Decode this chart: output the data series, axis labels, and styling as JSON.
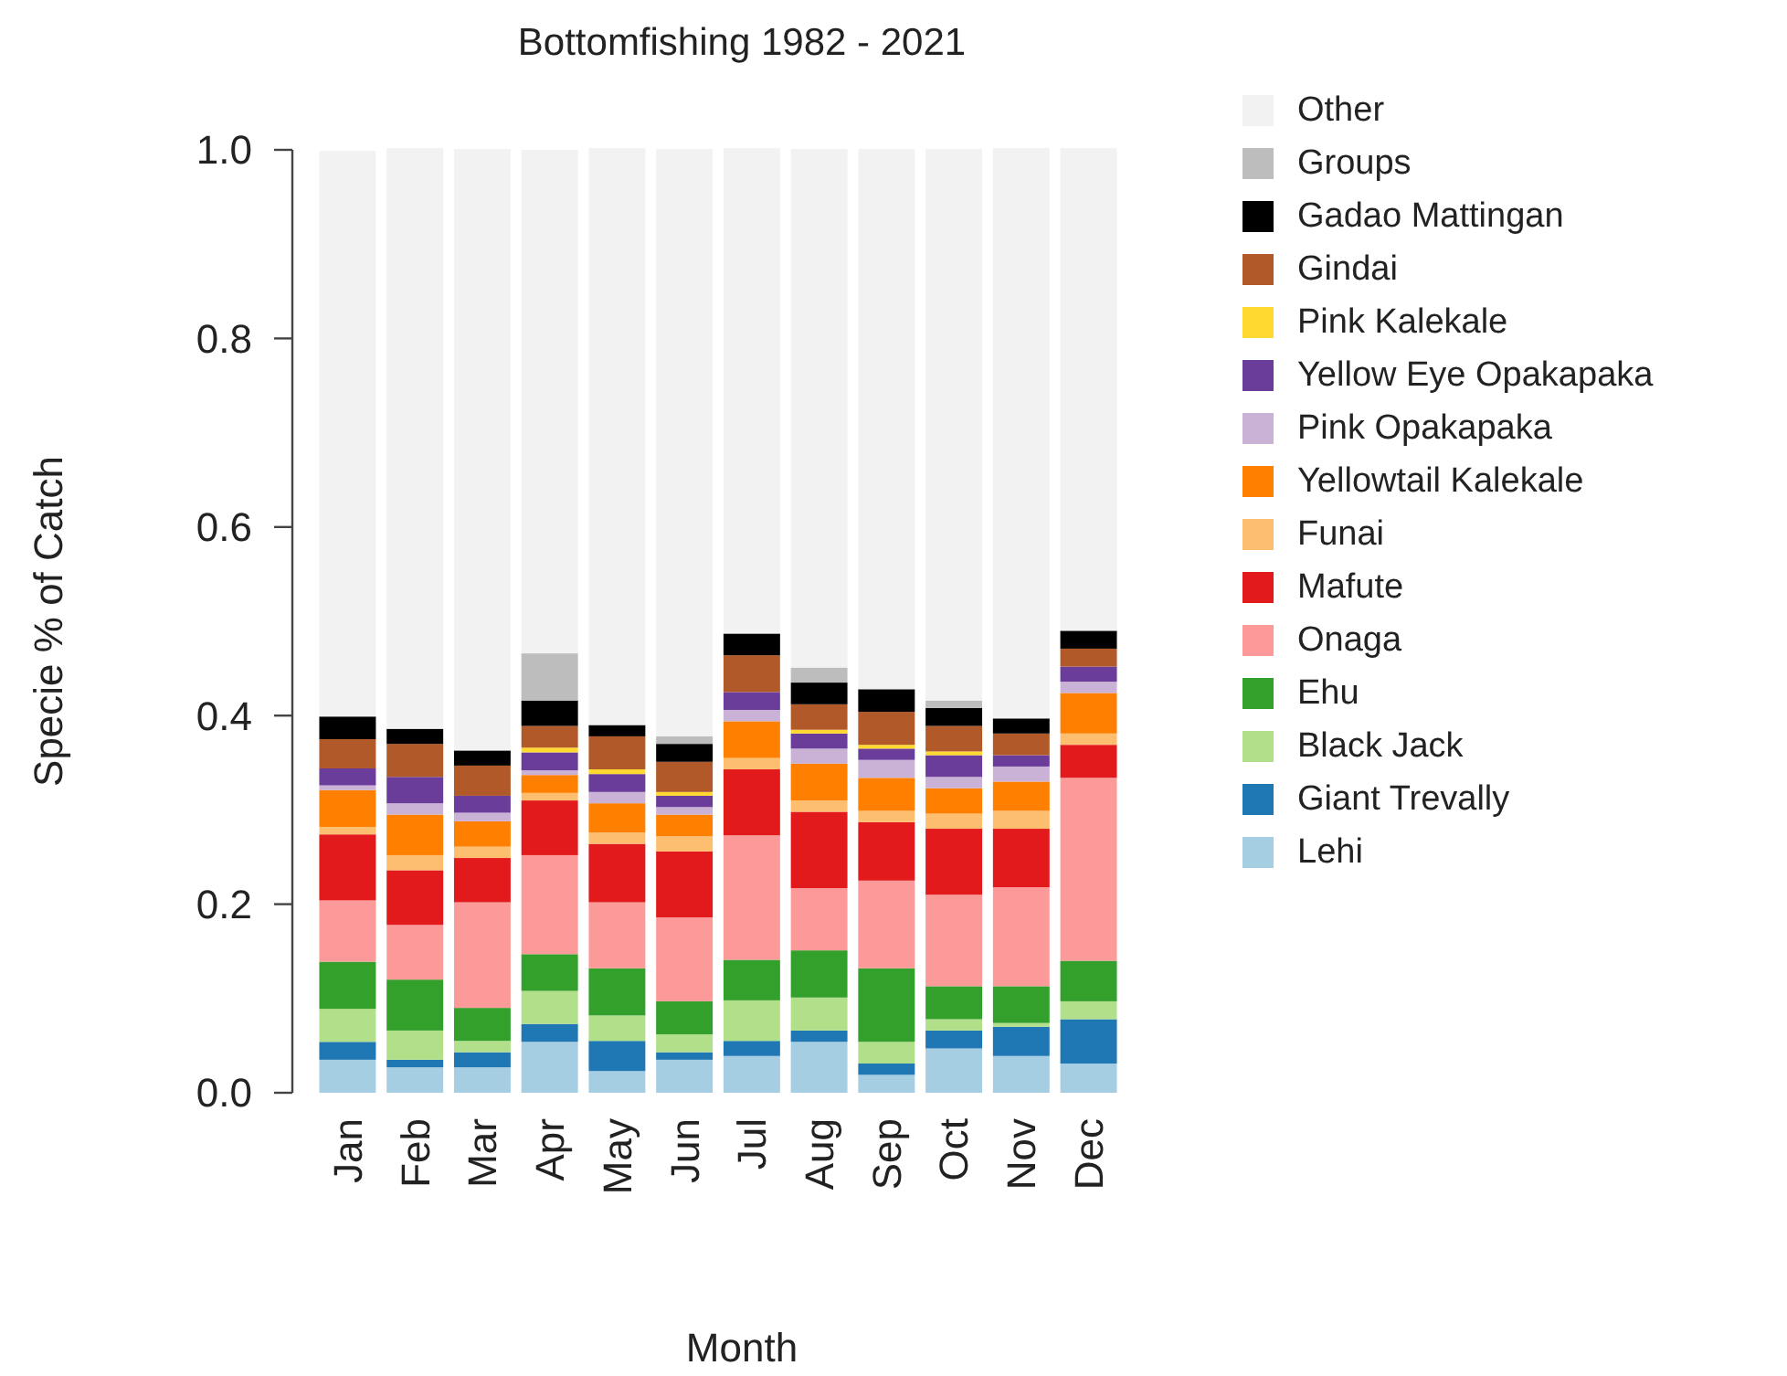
{
  "chart_data": {
    "type": "bar",
    "stacked": true,
    "title": "Bottomfishing 1982 - 2021",
    "xlabel": "Month",
    "ylabel": "Specie % of Catch",
    "categories": [
      "Jan",
      "Feb",
      "Mar",
      "Apr",
      "May",
      "Jun",
      "Jul",
      "Aug",
      "Sep",
      "Oct",
      "Nov",
      "Dec"
    ],
    "ylim": [
      0,
      1
    ],
    "yticks": [
      {
        "value": 0,
        "label": "0.0"
      },
      0.2,
      0.4,
      0.6,
      0.8,
      {
        "value": 1,
        "label": "1.0"
      }
    ],
    "grid": false,
    "legend": "right",
    "series": [
      {
        "name": "Lehi",
        "color": "#a6cee3",
        "values": [
          0.035,
          0.027,
          0.027,
          0.054,
          0.023,
          0.035,
          0.039,
          0.054,
          0.019,
          0.047,
          0.039,
          0.031
        ]
      },
      {
        "name": "Giant Trevally",
        "color": "#1f78b4",
        "values": [
          0.019,
          0.008,
          0.016,
          0.019,
          0.032,
          0.008,
          0.016,
          0.012,
          0.012,
          0.019,
          0.031,
          0.047
        ]
      },
      {
        "name": "Black Jack",
        "color": "#b2df8a",
        "values": [
          0.035,
          0.031,
          0.012,
          0.035,
          0.027,
          0.019,
          0.043,
          0.035,
          0.023,
          0.012,
          0.004,
          0.019
        ]
      },
      {
        "name": "Ehu",
        "color": "#33a02c",
        "values": [
          0.05,
          0.054,
          0.035,
          0.039,
          0.05,
          0.035,
          0.043,
          0.05,
          0.078,
          0.035,
          0.039,
          0.043
        ]
      },
      {
        "name": "Onaga",
        "color": "#fb9a99",
        "values": [
          0.065,
          0.058,
          0.112,
          0.105,
          0.07,
          0.089,
          0.132,
          0.066,
          0.093,
          0.097,
          0.105,
          0.194
        ]
      },
      {
        "name": "Mafute",
        "color": "#e31a1c",
        "values": [
          0.07,
          0.058,
          0.047,
          0.058,
          0.062,
          0.07,
          0.07,
          0.081,
          0.062,
          0.07,
          0.062,
          0.035
        ]
      },
      {
        "name": "Funai",
        "color": "#fdbf6f",
        "values": [
          0.008,
          0.016,
          0.012,
          0.008,
          0.012,
          0.016,
          0.012,
          0.012,
          0.012,
          0.016,
          0.019,
          0.012
        ]
      },
      {
        "name": "Yellowtail Kalekale",
        "color": "#ff7f00",
        "values": [
          0.039,
          0.043,
          0.027,
          0.019,
          0.031,
          0.023,
          0.039,
          0.039,
          0.035,
          0.027,
          0.031,
          0.043
        ]
      },
      {
        "name": "Pink Opakapaka",
        "color": "#cab2d6",
        "values": [
          0.005,
          0.012,
          0.009,
          0.005,
          0.012,
          0.008,
          0.012,
          0.016,
          0.019,
          0.012,
          0.016,
          0.012
        ]
      },
      {
        "name": "Yellow Eye Opakapaka",
        "color": "#6a3d9a",
        "values": [
          0.018,
          0.028,
          0.018,
          0.019,
          0.019,
          0.012,
          0.019,
          0.016,
          0.012,
          0.023,
          0.012,
          0.016
        ]
      },
      {
        "name": "Pink Kalekale",
        "color": "#ffd92f",
        "values": [
          0,
          0,
          0,
          0.005,
          0.005,
          0.004,
          0,
          0.004,
          0.004,
          0.004,
          0,
          0
        ]
      },
      {
        "name": "Gindai",
        "color": "#b15928",
        "values": [
          0.031,
          0.035,
          0.032,
          0.023,
          0.035,
          0.032,
          0.039,
          0.027,
          0.035,
          0.027,
          0.023,
          0.019
        ]
      },
      {
        "name": "Gadao Mattingan",
        "color": "#000000",
        "values": [
          0.024,
          0.016,
          0.016,
          0.027,
          0.012,
          0.019,
          0.023,
          0.023,
          0.024,
          0.019,
          0.016,
          0.019
        ]
      },
      {
        "name": "Groups",
        "color": "#bdbdbd",
        "values": [
          0,
          0,
          0,
          0.05,
          0,
          0.008,
          0,
          0.016,
          0,
          0.008,
          0,
          0
        ]
      },
      {
        "name": "Other",
        "color": "#f2f2f2",
        "values": [
          0.6,
          0.616,
          0.638,
          0.534,
          0.612,
          0.623,
          0.515,
          0.55,
          0.573,
          0.585,
          0.605,
          0.512
        ]
      }
    ]
  }
}
